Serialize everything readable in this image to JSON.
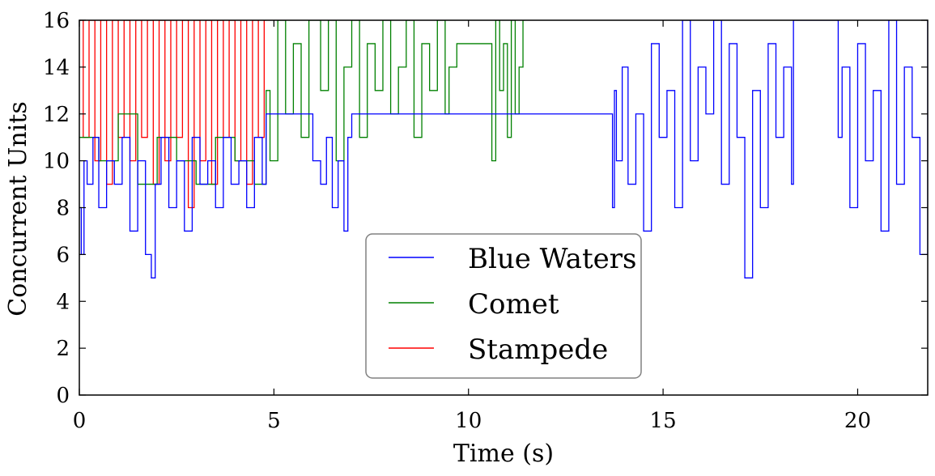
{
  "chart_data": {
    "type": "line",
    "title": "",
    "xlabel": "Time (s)",
    "ylabel": "Concurrent Units",
    "xlim": [
      0,
      21.8
    ],
    "ylim": [
      0,
      16
    ],
    "xticks": [
      0,
      5,
      10,
      15,
      20
    ],
    "yticks": [
      0,
      2,
      4,
      6,
      8,
      10,
      12,
      14,
      16
    ],
    "grid": false,
    "legend_position": "lower-center",
    "step": true,
    "series": [
      {
        "name": "Blue Waters",
        "color": "#0000ff",
        "x": [
          0.0,
          0.05,
          0.12,
          0.2,
          0.35,
          0.5,
          0.7,
          0.9,
          1.1,
          1.3,
          1.5,
          1.7,
          1.85,
          1.95,
          2.1,
          2.3,
          2.5,
          2.7,
          2.9,
          3.1,
          3.3,
          3.5,
          3.7,
          3.9,
          4.1,
          4.3,
          4.5,
          4.7,
          4.8,
          5.0,
          6.0,
          6.2,
          6.35,
          6.5,
          6.65,
          6.8,
          6.9,
          7.0,
          9.5,
          13.7,
          13.75,
          13.8,
          13.95,
          14.1,
          14.3,
          14.5,
          14.7,
          14.9,
          15.1,
          15.3,
          15.5,
          15.7,
          15.9,
          16.1,
          16.3,
          16.5,
          16.7,
          16.9,
          17.1,
          17.3,
          17.5,
          17.7,
          17.9,
          18.1,
          18.3,
          18.35,
          19.4,
          19.5,
          19.6,
          19.8,
          20.0,
          20.2,
          20.4,
          20.6,
          20.8,
          21.0,
          21.2,
          21.4,
          21.6,
          21.8
        ],
        "y": [
          8,
          6,
          10,
          9,
          11,
          8,
          10,
          9,
          11,
          7,
          10,
          6,
          5,
          9,
          11,
          8,
          10,
          7,
          11,
          9,
          10,
          8,
          11,
          9,
          10,
          8,
          11,
          9,
          12,
          12,
          10,
          9,
          11,
          8,
          10,
          7,
          11,
          12,
          12,
          8,
          13,
          10,
          14,
          9,
          12,
          7,
          15,
          11,
          13,
          8,
          16,
          10,
          14,
          12,
          16,
          9,
          15,
          11,
          5,
          13,
          8,
          15,
          11,
          14,
          9,
          16,
          16,
          11,
          14,
          8,
          15,
          10,
          13,
          7,
          16,
          9,
          14,
          11,
          6,
          16
        ]
      },
      {
        "name": "Comet",
        "color": "#008000",
        "x": [
          0.0,
          0.5,
          1.0,
          1.5,
          2.0,
          2.5,
          3.0,
          3.5,
          4.0,
          4.5,
          4.8,
          4.9,
          5.1,
          5.3,
          5.5,
          5.7,
          5.9,
          6.0,
          6.2,
          6.4,
          6.6,
          6.8,
          7.0,
          7.2,
          7.4,
          7.6,
          7.8,
          8.0,
          8.2,
          8.4,
          8.6,
          8.8,
          9.0,
          9.2,
          9.4,
          9.5,
          9.7,
          10.6,
          10.7,
          10.8,
          10.9,
          11.0,
          11.1,
          11.2,
          11.3,
          11.4,
          11.45
        ],
        "y": [
          11,
          10,
          12,
          9,
          11,
          10,
          9,
          11,
          10,
          9,
          13,
          10,
          16,
          12,
          15,
          11,
          16,
          16,
          13,
          16,
          10,
          14,
          16,
          11,
          15,
          13,
          16,
          12,
          14,
          16,
          11,
          15,
          13,
          16,
          12,
          14,
          15,
          10,
          16,
          13,
          15,
          11,
          16,
          12,
          14,
          16,
          16
        ]
      },
      {
        "name": "Stampede",
        "color": "#ff0000",
        "x": [
          0.0,
          0.1,
          0.25,
          0.4,
          0.55,
          0.7,
          0.85,
          1.0,
          1.15,
          1.3,
          1.45,
          1.6,
          1.75,
          1.9,
          2.05,
          2.2,
          2.35,
          2.5,
          2.65,
          2.8,
          2.95,
          3.1,
          3.25,
          3.4,
          3.55,
          3.7,
          3.85,
          4.0,
          4.15,
          4.3,
          4.45,
          4.6,
          4.75,
          4.8
        ],
        "y": [
          16,
          11,
          16,
          10,
          16,
          9,
          16,
          11,
          16,
          10,
          16,
          11,
          16,
          9,
          16,
          10,
          16,
          11,
          16,
          8,
          16,
          10,
          16,
          9,
          16,
          11,
          16,
          10,
          16,
          9,
          16,
          11,
          16,
          16
        ]
      }
    ]
  }
}
